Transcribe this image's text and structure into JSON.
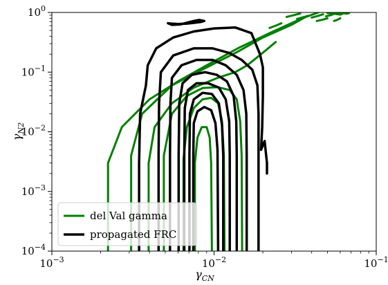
{
  "chart_data": {
    "type": "contour",
    "xlabel": "γ_CN",
    "ylabel": "γ_N2",
    "xscale": "log",
    "yscale": "log",
    "xlim": [
      0.001,
      0.1
    ],
    "ylim": [
      0.0001,
      1
    ],
    "x_ticks": [
      {
        "value": 0.001,
        "mantissa": "10",
        "exp": "−3"
      },
      {
        "value": 0.01,
        "mantissa": "10",
        "exp": "−2"
      },
      {
        "value": 0.1,
        "mantissa": "10",
        "exp": "−1"
      }
    ],
    "y_ticks": [
      {
        "value": 0.0001,
        "mantissa": "10",
        "exp": "−4"
      },
      {
        "value": 0.001,
        "mantissa": "10",
        "exp": "−3"
      },
      {
        "value": 0.01,
        "mantissa": "10",
        "exp": "−2"
      },
      {
        "value": 0.1,
        "mantissa": "10",
        "exp": "−1"
      },
      {
        "value": 1,
        "mantissa": "10",
        "exp": "0"
      }
    ],
    "legend_position": "lower-left",
    "grid": false,
    "series": [
      {
        "name": "del Val gamma",
        "color": "#008000",
        "line_width": 3,
        "contours": [
          [
            [
              0.00222,
              0.0001
            ],
            [
              0.00222,
              0.003
            ],
            [
              0.0027,
              0.012
            ],
            [
              0.004,
              0.035
            ],
            [
              0.006,
              0.07
            ],
            [
              0.009,
              0.13
            ],
            [
              0.014,
              0.25
            ],
            [
              0.022,
              0.45
            ],
            [
              0.035,
              0.8
            ],
            [
              0.044,
              1.0
            ]
          ],
          [
            [
              0.00308,
              0.0001
            ],
            [
              0.00308,
              0.004
            ],
            [
              0.0036,
              0.02
            ],
            [
              0.0055,
              0.06
            ],
            [
              0.009,
              0.12
            ],
            [
              0.014,
              0.22
            ],
            [
              0.02,
              0.38
            ],
            [
              0.03,
              0.62
            ],
            [
              0.037,
              0.85
            ]
          ],
          [
            [
              0.00395,
              0.0001
            ],
            [
              0.00395,
              0.003
            ],
            [
              0.0043,
              0.012
            ],
            [
              0.0055,
              0.03
            ],
            [
              0.0075,
              0.055
            ],
            [
              0.0105,
              0.08
            ],
            [
              0.0135,
              0.1
            ],
            [
              0.016,
              0.13
            ],
            [
              0.0195,
              0.2
            ],
            [
              0.024,
              0.32
            ]
          ],
          [
            [
              0.0049,
              0.0001
            ],
            [
              0.0049,
              0.004
            ],
            [
              0.0055,
              0.02
            ],
            [
              0.0068,
              0.04
            ],
            [
              0.0085,
              0.054
            ],
            [
              0.0105,
              0.056
            ],
            [
              0.0125,
              0.05
            ],
            [
              0.0138,
              0.035
            ],
            [
              0.0145,
              0.015
            ],
            [
              0.0148,
              0.004
            ],
            [
              0.0149,
              0.0001
            ]
          ],
          [
            [
              0.00648,
              0.0001
            ],
            [
              0.00648,
              0.0035
            ],
            [
              0.0068,
              0.012
            ],
            [
              0.0075,
              0.025
            ],
            [
              0.0085,
              0.035
            ],
            [
              0.0096,
              0.037
            ],
            [
              0.0106,
              0.03
            ],
            [
              0.0112,
              0.015
            ],
            [
              0.0115,
              0.004
            ],
            [
              0.0116,
              0.0001
            ]
          ],
          [
            [
              0.00762,
              0.0001
            ],
            [
              0.00762,
              0.003
            ],
            [
              0.0079,
              0.008
            ],
            [
              0.0084,
              0.012
            ],
            [
              0.009,
              0.012
            ],
            [
              0.0094,
              0.008
            ],
            [
              0.0096,
              0.003
            ],
            [
              0.0097,
              0.0001
            ]
          ],
          [
            [
              0.028,
              0.84
            ],
            [
              0.031,
              0.9
            ],
            [
              0.034,
              0.96
            ]
          ],
          [
            [
              0.022,
              0.55
            ],
            [
              0.024,
              0.6
            ],
            [
              0.026,
              0.66
            ]
          ],
          [
            [
              0.0325,
              0.78
            ],
            [
              0.036,
              0.84
            ],
            [
              0.038,
              0.88
            ]
          ],
          [
            [
              0.04,
              0.82
            ],
            [
              0.044,
              0.88
            ],
            [
              0.047,
              0.93
            ]
          ],
          [
            [
              0.043,
              0.72
            ],
            [
              0.047,
              0.76
            ],
            [
              0.05,
              0.8
            ]
          ],
          [
            [
              0.049,
              0.86
            ],
            [
              0.053,
              0.91
            ],
            [
              0.056,
              0.96
            ]
          ],
          [
            [
              0.055,
              0.72
            ],
            [
              0.058,
              0.76
            ],
            [
              0.06,
              0.8
            ]
          ],
          [
            [
              0.05,
              0.98
            ],
            [
              0.055,
              0.95
            ],
            [
              0.06,
              0.92
            ],
            [
              0.062,
              0.95
            ],
            [
              0.058,
              0.99
            ],
            [
              0.052,
              1.0
            ]
          ],
          [
            [
              0.062,
              0.98
            ],
            [
              0.066,
              0.95
            ],
            [
              0.068,
              0.98
            ]
          ]
        ]
      },
      {
        "name": "propagated FRC",
        "color": "#000000",
        "line_width": 3.5,
        "contours": [
          [
            [
              0.00345,
              0.0001
            ],
            [
              0.00345,
              0.003
            ],
            [
              0.0035,
              0.02
            ],
            [
              0.0038,
              0.06
            ],
            [
              0.0039,
              0.13
            ],
            [
              0.0044,
              0.25
            ],
            [
              0.0056,
              0.38
            ],
            [
              0.0075,
              0.48
            ],
            [
              0.01,
              0.54
            ],
            [
              0.0135,
              0.56
            ],
            [
              0.017,
              0.45
            ],
            [
              0.0192,
              0.2
            ],
            [
              0.02,
              0.12
            ],
            [
              0.02,
              0.04
            ],
            [
              0.0198,
              0.012
            ],
            [
              0.0195,
              0.005
            ],
            [
              0.0205,
              0.007
            ],
            [
              0.0212,
              0.003
            ],
            [
              0.0212,
              0.002
            ]
          ],
          [
            [
              0.00455,
              0.0001
            ],
            [
              0.00455,
              0.004
            ],
            [
              0.00458,
              0.03
            ],
            [
              0.0047,
              0.1
            ],
            [
              0.0056,
              0.19
            ],
            [
              0.0075,
              0.25
            ],
            [
              0.0098,
              0.25
            ],
            [
              0.0124,
              0.21
            ],
            [
              0.0148,
              0.16
            ],
            [
              0.0172,
              0.11
            ],
            [
              0.0185,
              0.06
            ],
            [
              0.0188,
              0.02
            ],
            [
              0.0188,
              0.004
            ],
            [
              0.0188,
              0.0001
            ]
          ],
          [
            [
              0.00535,
              0.0001
            ],
            [
              0.00535,
              0.004
            ],
            [
              0.00538,
              0.03
            ],
            [
              0.0055,
              0.08
            ],
            [
              0.0063,
              0.13
            ],
            [
              0.0078,
              0.16
            ],
            [
              0.0098,
              0.16
            ],
            [
              0.0118,
              0.13
            ],
            [
              0.0138,
              0.09
            ],
            [
              0.0152,
              0.05
            ],
            [
              0.0158,
              0.02
            ],
            [
              0.0159,
              0.004
            ],
            [
              0.0159,
              0.0001
            ]
          ],
          [
            [
              0.00605,
              0.0001
            ],
            [
              0.00605,
              0.004
            ],
            [
              0.0061,
              0.03
            ],
            [
              0.0064,
              0.065
            ],
            [
              0.0073,
              0.09
            ],
            [
              0.0088,
              0.1
            ],
            [
              0.0104,
              0.09
            ],
            [
              0.012,
              0.07
            ],
            [
              0.0132,
              0.04
            ],
            [
              0.0137,
              0.015
            ],
            [
              0.0138,
              0.004
            ],
            [
              0.0138,
              0.0001
            ]
          ],
          [
            [
              0.00655,
              0.0001
            ],
            [
              0.00655,
              0.004
            ],
            [
              0.0066,
              0.025
            ],
            [
              0.0069,
              0.05
            ],
            [
              0.0078,
              0.065
            ],
            [
              0.0092,
              0.065
            ],
            [
              0.0107,
              0.055
            ],
            [
              0.0118,
              0.035
            ],
            [
              0.0124,
              0.015
            ],
            [
              0.0125,
              0.004
            ],
            [
              0.0125,
              0.0001
            ]
          ],
          [
            [
              0.00705,
              0.0001
            ],
            [
              0.00705,
              0.004
            ],
            [
              0.0071,
              0.02
            ],
            [
              0.0075,
              0.035
            ],
            [
              0.0085,
              0.045
            ],
            [
              0.0097,
              0.043
            ],
            [
              0.0107,
              0.03
            ],
            [
              0.0112,
              0.013
            ],
            [
              0.0114,
              0.004
            ],
            [
              0.0114,
              0.0001
            ]
          ],
          [
            [
              0.00745,
              0.0001
            ],
            [
              0.00745,
              0.004
            ],
            [
              0.0075,
              0.014
            ],
            [
              0.0079,
              0.022
            ],
            [
              0.0087,
              0.026
            ],
            [
              0.0096,
              0.023
            ],
            [
              0.0102,
              0.014
            ],
            [
              0.0105,
              0.005
            ],
            [
              0.0106,
              0.0001
            ]
          ],
          [
            [
              0.0052,
              0.66
            ],
            [
              0.0055,
              0.62
            ],
            [
              0.0062,
              0.63
            ],
            [
              0.0069,
              0.68
            ],
            [
              0.0075,
              0.72
            ],
            [
              0.0081,
              0.75
            ],
            [
              0.0087,
              0.72
            ],
            [
              0.0082,
              0.69
            ],
            [
              0.0075,
              0.67
            ],
            [
              0.0068,
              0.65
            ],
            [
              0.006,
              0.64
            ],
            [
              0.0054,
              0.65
            ],
            [
              0.0052,
              0.66
            ]
          ]
        ]
      }
    ]
  }
}
